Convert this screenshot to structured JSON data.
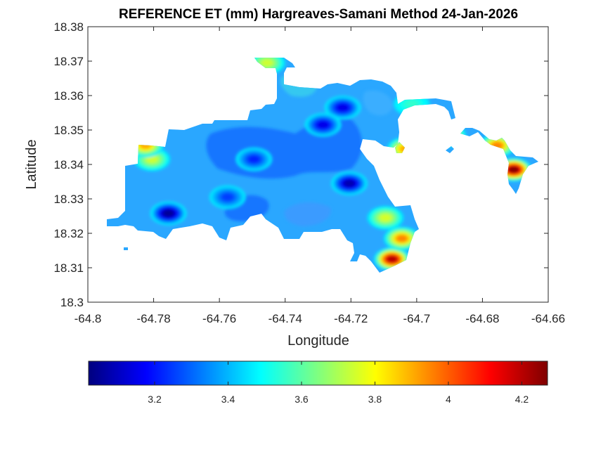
{
  "chart_data": {
    "type": "heatmap",
    "title": "REFERENCE ET (mm) Hargreaves-Samani Method  24-Jan-2026",
    "xlabel": "Longitude",
    "ylabel": "Latitude",
    "xlim": [
      -64.8,
      -64.66
    ],
    "ylim": [
      18.3,
      18.38
    ],
    "x_ticks": [
      "-64.8",
      "-64.78",
      "-64.76",
      "-64.74",
      "-64.72",
      "-64.7",
      "-64.68",
      "-64.66"
    ],
    "y_ticks": [
      "18.3",
      "18.31",
      "18.32",
      "18.33",
      "18.34",
      "18.35",
      "18.36",
      "18.37",
      "18.38"
    ],
    "colorbar": {
      "orientation": "horizontal",
      "colormap": "jet",
      "range": [
        3.02,
        4.27
      ],
      "ticks": [
        "3.2",
        "3.4",
        "3.6",
        "3.8",
        "4",
        "4.2"
      ]
    },
    "hotspots": [
      {
        "lon": -64.7755,
        "lat": 18.3258,
        "value": 3.05
      },
      {
        "lon": -64.7205,
        "lat": 18.3345,
        "value": 3.08
      },
      {
        "lon": -64.7225,
        "lat": 18.3565,
        "value": 3.15
      },
      {
        "lon": -64.7285,
        "lat": 18.3515,
        "value": 3.15
      },
      {
        "lon": -64.7495,
        "lat": 18.3415,
        "value": 3.22
      },
      {
        "lon": -64.7575,
        "lat": 18.3305,
        "value": 3.25
      },
      {
        "lon": -64.7805,
        "lat": 18.3415,
        "value": 3.74
      },
      {
        "lon": -64.7825,
        "lat": 18.3455,
        "value": 3.9
      },
      {
        "lon": -64.6705,
        "lat": 18.3385,
        "value": 4.26
      },
      {
        "lon": -64.7075,
        "lat": 18.3125,
        "value": 4.2
      },
      {
        "lon": -64.7045,
        "lat": 18.3185,
        "value": 3.95
      },
      {
        "lon": -64.7095,
        "lat": 18.3245,
        "value": 3.75
      },
      {
        "lon": -64.7455,
        "lat": 18.3695,
        "value": 3.74
      },
      {
        "lon": -64.7035,
        "lat": 18.3445,
        "value": 3.9
      },
      {
        "lon": -64.6905,
        "lat": 18.3485,
        "value": 3.9
      },
      {
        "lon": -64.6755,
        "lat": 18.3455,
        "value": 3.95
      },
      {
        "lon": -64.7015,
        "lat": 18.3575,
        "value": 3.55
      }
    ]
  }
}
